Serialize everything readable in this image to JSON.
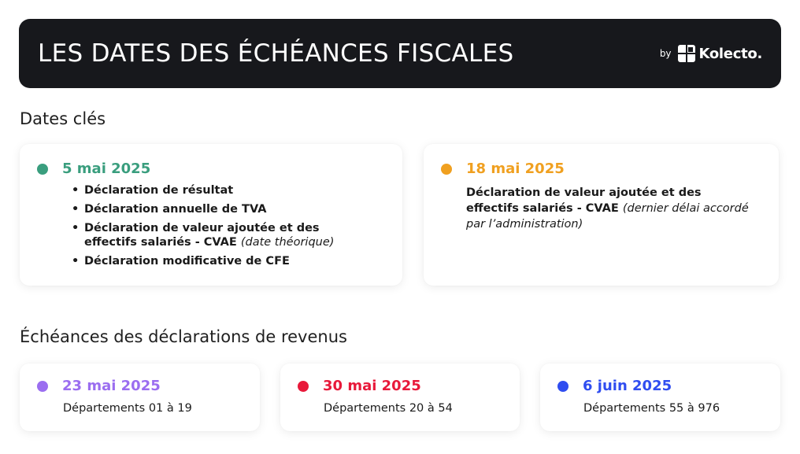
{
  "header": {
    "title": "LES DATES DES ÉCHÉANCES FISCALES",
    "brand_by": "by",
    "brand_name": "Kolecto."
  },
  "sections": {
    "key_dates_title": "Dates clés",
    "income_title": "Échéances des déclarations de revenus"
  },
  "key_dates": [
    {
      "date": "5 mai 2025",
      "color": "#3a9e7e",
      "items": [
        {
          "text": "Déclaration de résultat",
          "note": ""
        },
        {
          "text": "Déclaration annuelle de TVA",
          "note": ""
        },
        {
          "text": "Déclaration de valeur ajoutée et des effectifs salariés - CVAE",
          "note": "(date théorique)"
        },
        {
          "text": "Déclaration modificative de CFE",
          "note": ""
        }
      ]
    },
    {
      "date": "18 mai 2025",
      "color": "#f0a020",
      "description": "Déclaration de valeur ajoutée et des effectifs salariés - CVAE",
      "note": "(dernier délai accordé par l’administration)"
    }
  ],
  "income": [
    {
      "date": "23 mai 2025",
      "color": "#9b6ef0",
      "text": "Départements 01 à 19"
    },
    {
      "date": "30 mai 2025",
      "color": "#e8193a",
      "text": "Départements 20 à 54"
    },
    {
      "date": "6 juin 2025",
      "color": "#2f4df0",
      "text": "Départements 55 à 976"
    }
  ]
}
